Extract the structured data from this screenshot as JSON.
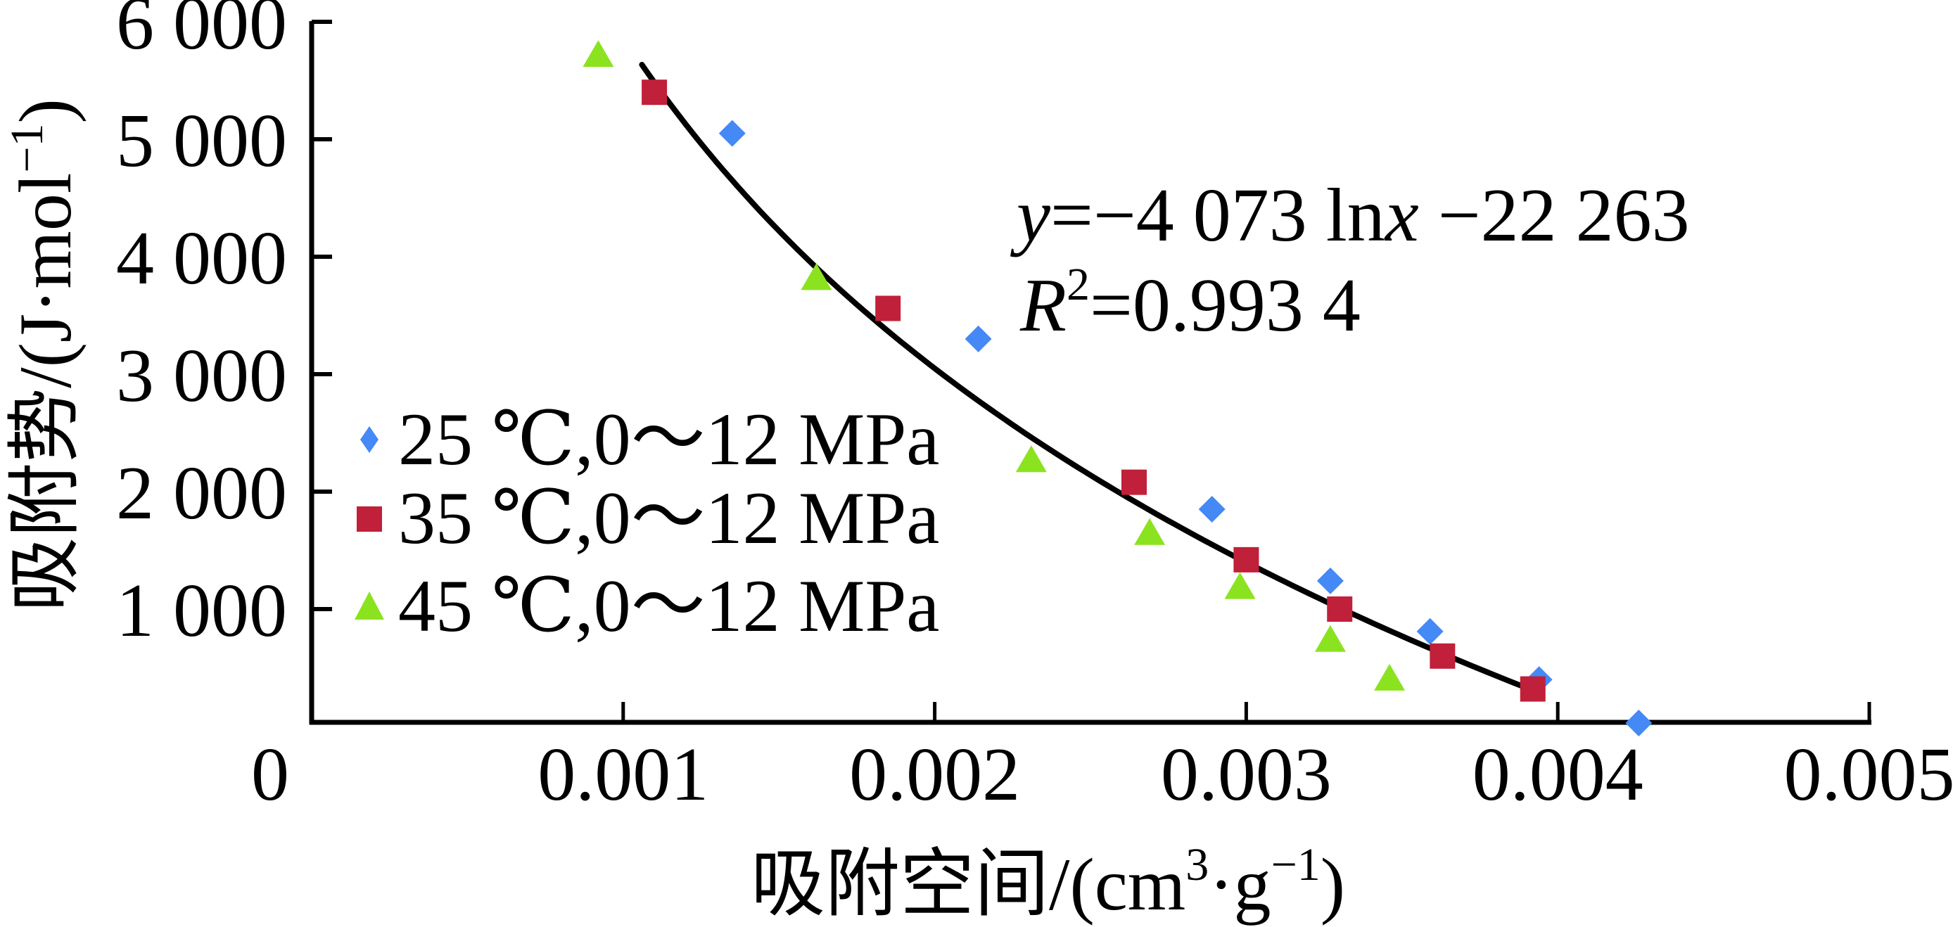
{
  "chart_data": {
    "type": "scatter",
    "title": "",
    "xlabel": "吸附空间/(cm³·g⁻¹)",
    "xlabel_parts": {
      "main": "吸附空间/(cm",
      "sup1": "3",
      "mid": "·g",
      "sup2": "−1",
      "end": ")"
    },
    "ylabel": "吸附势/(J·mol⁻¹)",
    "ylabel_parts": {
      "main": "吸附势/(J·mol",
      "sup": "−1",
      "end": ")"
    },
    "xlim": [
      0,
      0.005
    ],
    "ylim": [
      0,
      6000
    ],
    "x_ticks": [
      {
        "value": 0,
        "label": "0"
      },
      {
        "value": 0.001,
        "label": "0.001"
      },
      {
        "value": 0.002,
        "label": "0.002"
      },
      {
        "value": 0.003,
        "label": "0.003"
      },
      {
        "value": 0.004,
        "label": "0.004"
      },
      {
        "value": 0.005,
        "label": "0.005"
      }
    ],
    "y_ticks": [
      {
        "value": 1000,
        "label": "1 000"
      },
      {
        "value": 2000,
        "label": "2 000"
      },
      {
        "value": 3000,
        "label": "3 000"
      },
      {
        "value": 4000,
        "label": "4 000"
      },
      {
        "value": 5000,
        "label": "5 000"
      },
      {
        "value": 6000,
        "label": "6 000"
      }
    ],
    "grid": false,
    "legend_position": "center-left",
    "series": [
      {
        "name": "25 ℃,0～12 MPa",
        "label_parts": {
          "temp": "25 ℃,0",
          "tilde": "～",
          "rest": "12 MPa"
        },
        "marker": "diamond",
        "color": "#4489F5",
        "x": [
          0.00135,
          0.00214,
          0.00289,
          0.00327,
          0.00359,
          0.00394,
          0.00426
        ],
        "y": [
          5050,
          3300,
          1850,
          1240,
          810,
          400,
          30
        ]
      },
      {
        "name": "35 ℃,0～12 MPa",
        "label_parts": {
          "temp": "35 ℃,0",
          "tilde": "～",
          "rest": "12 MPa"
        },
        "marker": "square",
        "color": "#C0203A",
        "x": [
          0.0011,
          0.00185,
          0.00264,
          0.003,
          0.0033,
          0.00363,
          0.00392
        ],
        "y": [
          5400,
          3560,
          2080,
          1420,
          1000,
          600,
          320
        ]
      },
      {
        "name": "45 ℃,0～12 MPa",
        "label_parts": {
          "temp": "45 ℃,0",
          "tilde": "～",
          "rest": "12 MPa"
        },
        "marker": "triangle",
        "color": "#8BE31F",
        "x": [
          0.00092,
          0.00162,
          0.00231,
          0.00269,
          0.00298,
          0.00327,
          0.00346
        ],
        "y": [
          5700,
          3800,
          2250,
          1630,
          1170,
          720,
          390
        ]
      }
    ],
    "trendline": {
      "type": "logarithmic",
      "a": -4073,
      "b": -22263,
      "x_range": [
        0.00106,
        0.00391
      ],
      "color": "#000000",
      "equation_parts": {
        "y": "y",
        "eq1": "=−4 073 ln",
        "x": "x",
        "eq2": " −22 263"
      },
      "equation": "y=−4 073 lnx −22 263",
      "r2_parts": {
        "R": "R",
        "sup": "2",
        "val": "=0.993 4"
      },
      "r2": "R²=0.993 4"
    }
  }
}
